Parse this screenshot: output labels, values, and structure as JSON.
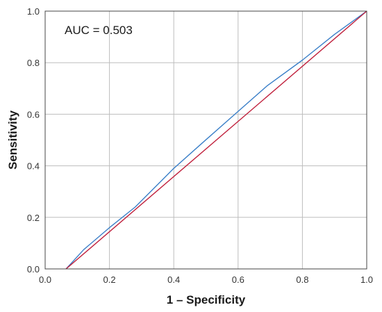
{
  "chart_data": {
    "type": "line",
    "xlabel": "1 – Specificity",
    "ylabel": "Sensitivity",
    "annotation": "AUC = 0.503",
    "xlim": [
      0.0,
      1.0
    ],
    "ylim": [
      0.0,
      1.0
    ],
    "x_ticks": [
      "0.0",
      "0.2",
      "0.4",
      "0.6",
      "0.8",
      "1.0"
    ],
    "y_ticks": [
      "0.0",
      "0.2",
      "0.4",
      "0.6",
      "0.8",
      "1.0"
    ],
    "grid": true,
    "series": [
      {
        "color": "#3a7fc8",
        "x": [
          0.065,
          0.12,
          0.2,
          0.28,
          0.4,
          0.49,
          0.59,
          0.69,
          0.8,
          0.9,
          1.0
        ],
        "y": [
          0.0,
          0.075,
          0.16,
          0.24,
          0.39,
          0.49,
          0.6,
          0.71,
          0.81,
          0.91,
          1.0
        ]
      },
      {
        "color": "#c0203c",
        "x": [
          0.065,
          1.0
        ],
        "y": [
          0.0,
          1.0
        ]
      }
    ]
  }
}
